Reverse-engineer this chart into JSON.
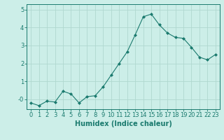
{
  "x": [
    0,
    1,
    2,
    3,
    4,
    5,
    6,
    7,
    8,
    9,
    10,
    11,
    12,
    13,
    14,
    15,
    16,
    17,
    18,
    19,
    20,
    21,
    22,
    23
  ],
  "y": [
    -0.2,
    -0.35,
    -0.1,
    -0.15,
    0.45,
    0.3,
    -0.2,
    0.15,
    0.2,
    0.7,
    1.35,
    2.0,
    2.65,
    3.6,
    4.6,
    4.75,
    4.15,
    3.7,
    3.45,
    3.4,
    2.9,
    2.35,
    2.2,
    2.5
  ],
  "line_color": "#1a7a6e",
  "marker": "D",
  "marker_size": 2,
  "bg_color": "#cceee8",
  "grid_color": "#b0d8cf",
  "xlabel": "Humidex (Indice chaleur)",
  "xlim": [
    -0.5,
    23.5
  ],
  "ylim": [
    -0.55,
    5.3
  ],
  "yticks": [
    0,
    1,
    2,
    3,
    4,
    5
  ],
  "ytick_labels": [
    "-0",
    "1",
    "2",
    "3",
    "4",
    "5"
  ],
  "xtick_labels": [
    "0",
    "1",
    "2",
    "3",
    "4",
    "5",
    "6",
    "7",
    "8",
    "9",
    "10",
    "11",
    "12",
    "13",
    "14",
    "15",
    "16",
    "17",
    "18",
    "19",
    "20",
    "21",
    "22",
    "23"
  ],
  "font_size": 6,
  "xlabel_fontsize": 7
}
